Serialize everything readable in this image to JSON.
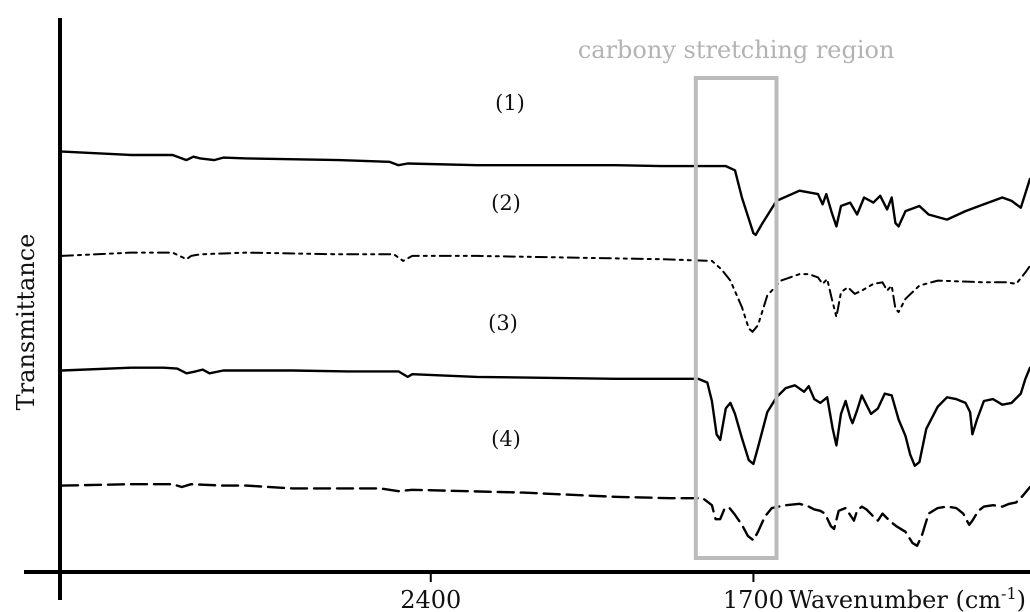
{
  "chart_data": {
    "type": "line",
    "title": "",
    "ylabel": "Transmittance",
    "xlabel": "Wavenumber (cm",
    "xlabel_sup": "-1",
    "xlabel_close": ")",
    "x_reversed": true,
    "x_ticks": [
      2400,
      1700
    ],
    "xlim": [
      3200,
      1100
    ],
    "grid": false,
    "annotation": {
      "text": "carbony stretching region",
      "x_range": [
        1825,
        1650
      ]
    },
    "series": [
      {
        "name": "(1)",
        "style": "solid",
        "width": 2.4,
        "points": [
          [
            3200,
            0.52
          ],
          [
            3050,
            0.5
          ],
          [
            2960,
            0.5
          ],
          [
            2930,
            0.47
          ],
          [
            2915,
            0.49
          ],
          [
            2900,
            0.48
          ],
          [
            2870,
            0.47
          ],
          [
            2850,
            0.485
          ],
          [
            2800,
            0.48
          ],
          [
            2600,
            0.47
          ],
          [
            2490,
            0.46
          ],
          [
            2470,
            0.44
          ],
          [
            2450,
            0.45
          ],
          [
            2300,
            0.44
          ],
          [
            2000,
            0.44
          ],
          [
            1900,
            0.435
          ],
          [
            1760,
            0.435
          ],
          [
            1740,
            0.41
          ],
          [
            1725,
            0.25
          ],
          [
            1700,
            0.04
          ],
          [
            1695,
            0.03
          ],
          [
            1680,
            0.1
          ],
          [
            1650,
            0.23
          ],
          [
            1600,
            0.29
          ],
          [
            1560,
            0.27
          ],
          [
            1550,
            0.21
          ],
          [
            1542,
            0.27
          ],
          [
            1530,
            0.16
          ],
          [
            1520,
            0.08
          ],
          [
            1510,
            0.2
          ],
          [
            1490,
            0.22
          ],
          [
            1475,
            0.15
          ],
          [
            1460,
            0.25
          ],
          [
            1440,
            0.22
          ],
          [
            1425,
            0.26
          ],
          [
            1410,
            0.18
          ],
          [
            1400,
            0.25
          ],
          [
            1392,
            0.1
          ],
          [
            1385,
            0.08
          ],
          [
            1370,
            0.17
          ],
          [
            1340,
            0.2
          ],
          [
            1320,
            0.15
          ],
          [
            1280,
            0.12
          ],
          [
            1240,
            0.17
          ],
          [
            1200,
            0.21
          ],
          [
            1160,
            0.25
          ],
          [
            1140,
            0.23
          ],
          [
            1120,
            0.19
          ],
          [
            1100,
            0.36
          ]
        ]
      },
      {
        "name": "(2)",
        "style": "dashdot",
        "width": 2.0,
        "points": [
          [
            3200,
            0.54
          ],
          [
            3050,
            0.56
          ],
          [
            2960,
            0.56
          ],
          [
            2930,
            0.52
          ],
          [
            2920,
            0.54
          ],
          [
            2900,
            0.55
          ],
          [
            2800,
            0.56
          ],
          [
            2600,
            0.55
          ],
          [
            2480,
            0.55
          ],
          [
            2460,
            0.51
          ],
          [
            2440,
            0.54
          ],
          [
            2300,
            0.54
          ],
          [
            1900,
            0.52
          ],
          [
            1790,
            0.51
          ],
          [
            1770,
            0.46
          ],
          [
            1750,
            0.39
          ],
          [
            1725,
            0.23
          ],
          [
            1710,
            0.1
          ],
          [
            1702,
            0.08
          ],
          [
            1690,
            0.12
          ],
          [
            1670,
            0.3
          ],
          [
            1640,
            0.39
          ],
          [
            1600,
            0.43
          ],
          [
            1580,
            0.43
          ],
          [
            1560,
            0.41
          ],
          [
            1550,
            0.37
          ],
          [
            1540,
            0.4
          ],
          [
            1530,
            0.28
          ],
          [
            1520,
            0.17
          ],
          [
            1510,
            0.32
          ],
          [
            1495,
            0.35
          ],
          [
            1480,
            0.31
          ],
          [
            1465,
            0.33
          ],
          [
            1440,
            0.37
          ],
          [
            1420,
            0.38
          ],
          [
            1410,
            0.33
          ],
          [
            1400,
            0.36
          ],
          [
            1392,
            0.22
          ],
          [
            1385,
            0.2
          ],
          [
            1370,
            0.28
          ],
          [
            1340,
            0.36
          ],
          [
            1300,
            0.39
          ],
          [
            1200,
            0.38
          ],
          [
            1150,
            0.38
          ],
          [
            1130,
            0.37
          ],
          [
            1110,
            0.44
          ],
          [
            1100,
            0.48
          ]
        ]
      },
      {
        "name": "(3)",
        "style": "solid",
        "width": 2.4,
        "points": [
          [
            3200,
            0.565
          ],
          [
            3050,
            0.58
          ],
          [
            2980,
            0.58
          ],
          [
            2950,
            0.575
          ],
          [
            2930,
            0.55
          ],
          [
            2910,
            0.56
          ],
          [
            2895,
            0.57
          ],
          [
            2880,
            0.55
          ],
          [
            2850,
            0.565
          ],
          [
            2700,
            0.565
          ],
          [
            2580,
            0.56
          ],
          [
            2470,
            0.56
          ],
          [
            2450,
            0.53
          ],
          [
            2440,
            0.545
          ],
          [
            2300,
            0.53
          ],
          [
            2000,
            0.52
          ],
          [
            1820,
            0.52
          ],
          [
            1800,
            0.5
          ],
          [
            1790,
            0.4
          ],
          [
            1780,
            0.22
          ],
          [
            1772,
            0.19
          ],
          [
            1760,
            0.36
          ],
          [
            1750,
            0.39
          ],
          [
            1740,
            0.33
          ],
          [
            1725,
            0.2
          ],
          [
            1710,
            0.08
          ],
          [
            1700,
            0.06
          ],
          [
            1690,
            0.15
          ],
          [
            1670,
            0.34
          ],
          [
            1650,
            0.42
          ],
          [
            1630,
            0.47
          ],
          [
            1610,
            0.485
          ],
          [
            1590,
            0.45
          ],
          [
            1580,
            0.48
          ],
          [
            1568,
            0.41
          ],
          [
            1555,
            0.39
          ],
          [
            1540,
            0.42
          ],
          [
            1528,
            0.25
          ],
          [
            1520,
            0.16
          ],
          [
            1510,
            0.33
          ],
          [
            1500,
            0.4
          ],
          [
            1490,
            0.31
          ],
          [
            1485,
            0.28
          ],
          [
            1475,
            0.35
          ],
          [
            1465,
            0.43
          ],
          [
            1455,
            0.38
          ],
          [
            1445,
            0.33
          ],
          [
            1430,
            0.36
          ],
          [
            1415,
            0.44
          ],
          [
            1400,
            0.43
          ],
          [
            1385,
            0.3
          ],
          [
            1370,
            0.21
          ],
          [
            1360,
            0.11
          ],
          [
            1350,
            0.05
          ],
          [
            1340,
            0.07
          ],
          [
            1325,
            0.25
          ],
          [
            1300,
            0.37
          ],
          [
            1280,
            0.42
          ],
          [
            1260,
            0.41
          ],
          [
            1240,
            0.39
          ],
          [
            1230,
            0.34
          ],
          [
            1225,
            0.22
          ],
          [
            1215,
            0.3
          ],
          [
            1200,
            0.4
          ],
          [
            1180,
            0.41
          ],
          [
            1160,
            0.38
          ],
          [
            1140,
            0.39
          ],
          [
            1120,
            0.44
          ],
          [
            1110,
            0.52
          ],
          [
            1100,
            0.58
          ]
        ]
      },
      {
        "name": "(4)",
        "style": "dashed",
        "width": 2.4,
        "points": [
          [
            3200,
            0.46
          ],
          [
            3050,
            0.47
          ],
          [
            2960,
            0.47
          ],
          [
            2940,
            0.45
          ],
          [
            2920,
            0.47
          ],
          [
            2850,
            0.46
          ],
          [
            2800,
            0.46
          ],
          [
            2700,
            0.44
          ],
          [
            2600,
            0.44
          ],
          [
            2510,
            0.44
          ],
          [
            2470,
            0.42
          ],
          [
            2440,
            0.43
          ],
          [
            2200,
            0.41
          ],
          [
            2000,
            0.38
          ],
          [
            1880,
            0.37
          ],
          [
            1810,
            0.37
          ],
          [
            1790,
            0.32
          ],
          [
            1782,
            0.22
          ],
          [
            1772,
            0.22
          ],
          [
            1762,
            0.3
          ],
          [
            1752,
            0.3
          ],
          [
            1742,
            0.26
          ],
          [
            1725,
            0.18
          ],
          [
            1712,
            0.1
          ],
          [
            1700,
            0.07
          ],
          [
            1690,
            0.13
          ],
          [
            1675,
            0.24
          ],
          [
            1660,
            0.3
          ],
          [
            1630,
            0.32
          ],
          [
            1600,
            0.33
          ],
          [
            1580,
            0.31
          ],
          [
            1568,
            0.29
          ],
          [
            1555,
            0.28
          ],
          [
            1545,
            0.26
          ],
          [
            1532,
            0.17
          ],
          [
            1525,
            0.15
          ],
          [
            1515,
            0.28
          ],
          [
            1500,
            0.3
          ],
          [
            1490,
            0.25
          ],
          [
            1482,
            0.21
          ],
          [
            1475,
            0.28
          ],
          [
            1465,
            0.31
          ],
          [
            1455,
            0.29
          ],
          [
            1440,
            0.24
          ],
          [
            1430,
            0.21
          ],
          [
            1420,
            0.26
          ],
          [
            1405,
            0.21
          ],
          [
            1390,
            0.17
          ],
          [
            1370,
            0.13
          ],
          [
            1355,
            0.05
          ],
          [
            1345,
            0.03
          ],
          [
            1335,
            0.1
          ],
          [
            1320,
            0.26
          ],
          [
            1300,
            0.3
          ],
          [
            1280,
            0.31
          ],
          [
            1260,
            0.3
          ],
          [
            1245,
            0.26
          ],
          [
            1232,
            0.18
          ],
          [
            1225,
            0.21
          ],
          [
            1212,
            0.28
          ],
          [
            1200,
            0.31
          ],
          [
            1180,
            0.32
          ],
          [
            1160,
            0.31
          ],
          [
            1145,
            0.33
          ],
          [
            1130,
            0.34
          ],
          [
            1115,
            0.39
          ],
          [
            1100,
            0.45
          ]
        ]
      }
    ]
  }
}
